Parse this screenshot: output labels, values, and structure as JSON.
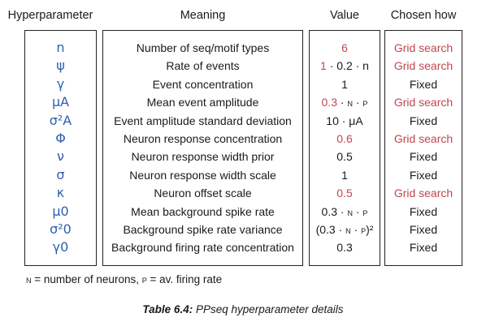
{
  "headers": [
    "Hyperparameter",
    "Meaning",
    "Value",
    "Chosen how"
  ],
  "rows": [
    {
      "symbol": "n",
      "meaning": "Number of seq/motif types",
      "value": "6",
      "value_red": true,
      "chosen": "Grid search",
      "chosen_red": true
    },
    {
      "symbol": "ψ",
      "meaning": "Rate of events",
      "value_parts": [
        "1",
        " · 0.2 · n"
      ],
      "value_red": false,
      "chosen": "Grid search",
      "chosen_red": true
    },
    {
      "symbol": "γ",
      "meaning": "Event concentration",
      "value": "1",
      "value_red": false,
      "chosen": "Fixed",
      "chosen_red": false
    },
    {
      "symbol": "μA",
      "meaning": "Mean event amplitude",
      "value_parts": [
        "0.3",
        " · ",
        "N",
        " · ",
        "P"
      ],
      "value_red": true,
      "chosen": "Grid search",
      "chosen_red": true
    },
    {
      "symbol": "σ²A",
      "meaning": "Event amplitude standard deviation",
      "value": "10 · μA",
      "value_red": false,
      "chosen": "Fixed",
      "chosen_red": false
    },
    {
      "symbol": "Φ",
      "meaning": "Neuron response concentration",
      "value": "0.6",
      "value_red": true,
      "chosen": "Grid search",
      "chosen_red": true
    },
    {
      "symbol": "ν",
      "meaning": "Neuron response width  prior",
      "value": "0.5",
      "value_red": false,
      "chosen": "Fixed",
      "chosen_red": false
    },
    {
      "symbol": "σ",
      "meaning": "Neuron response width scale",
      "value": "1",
      "value_red": false,
      "chosen": "Fixed",
      "chosen_red": false
    },
    {
      "symbol": "κ",
      "meaning": "Neuron offset scale",
      "value": "0.5",
      "value_red": true,
      "chosen": "Grid search",
      "chosen_red": true
    },
    {
      "symbol": "μ0",
      "meaning": "Mean background spike rate",
      "value_parts": [
        "0.3",
        " · ",
        "N",
        " · ",
        "P"
      ],
      "value_red": false,
      "chosen": "Fixed",
      "chosen_red": false
    },
    {
      "symbol": "σ²0",
      "meaning": "Background spike rate variance",
      "value_parts": [
        "(0.3 · ",
        "N",
        " · ",
        "P",
        ")²"
      ],
      "value_red": false,
      "chosen": "Fixed",
      "chosen_red": false
    },
    {
      "symbol": "γ0",
      "meaning": "Background firing rate concentration",
      "value": "0.3",
      "value_red": false,
      "chosen": "Fixed",
      "chosen_red": false
    }
  ],
  "footnote": {
    "n_symbol": "N",
    "n_text": " = number of neurons, ",
    "p_symbol": "P",
    "p_text": " = av. firing rate"
  },
  "caption": {
    "label": "Table 6.4:",
    "text": " PPseq hyperparameter details"
  },
  "colors": {
    "symbol": "#2f5fb0",
    "highlight": "#c0474f",
    "text": "#1a1a1a"
  }
}
